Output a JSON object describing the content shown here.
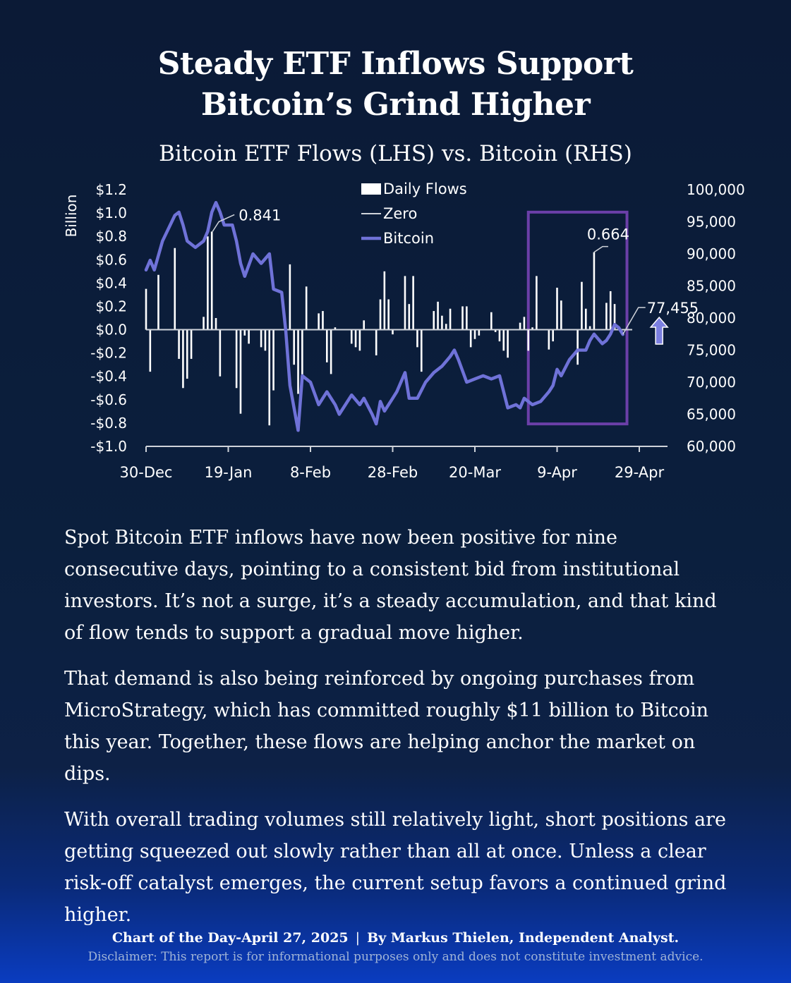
{
  "title_line1": "Steady ETF Inflows Support",
  "title_line2": "Bitcoin’s Grind Higher",
  "subtitle": "Bitcoin ETF Flows (LHS) vs. Bitcoin (RHS)",
  "paragraphs": [
    "Spot Bitcoin ETF inflows have now been positive for nine consecutive days, pointing to a consistent bid from institutional investors. It’s not a surge, it’s a steady accumulation, and that kind of flow tends to support a gradual move higher.",
    "That demand is also being reinforced by ongoing purchases from MicroStrategy, which has committed roughly $11 billion to Bitcoin this year. Together, these flows are helping anchor the market on dips.",
    "With overall trading volumes still relatively light, short positions are getting squeezed out slowly rather than all at once. Unless a clear risk-off catalyst emerges, the current setup favors a continued grind higher."
  ],
  "footer": {
    "left": "Chart of the Day-April 27, 2025",
    "separator": "|",
    "right": "By Markus Thielen, Independent Analyst.",
    "disclaimer": "Disclaimer: This report is for informational purposes only and does not constitute investment advice."
  },
  "colors": {
    "background": "#0b1f3d",
    "bitcoin_line": "#6f72d8",
    "bars": "#ffffff",
    "highlight_box": "#6b3fa8",
    "arrow": "#7b7fe0"
  },
  "chart_data": {
    "type": "bar+line",
    "left_axis": {
      "label": "Billion",
      "min": -1.0,
      "max": 1.2,
      "ticks": [
        -1.0,
        -0.8,
        -0.6,
        -0.4,
        -0.2,
        0.0,
        0.2,
        0.4,
        0.6,
        0.8,
        1.0,
        1.2
      ],
      "tick_labels": [
        "-$1.0",
        "-$0.8",
        "-$0.6",
        "-$0.4",
        "-$0.2",
        "$0.0",
        "$0.2",
        "$0.4",
        "$0.6",
        "$0.8",
        "$1.0",
        "$1.2"
      ]
    },
    "right_axis": {
      "min": 60000,
      "max": 100000,
      "ticks": [
        60000,
        65000,
        70000,
        75000,
        80000,
        85000,
        90000,
        95000,
        100000
      ],
      "tick_labels": [
        "60,000",
        "65,000",
        "70,000",
        "75,000",
        "80,000",
        "85,000",
        "90,000",
        "95,000",
        "100,000"
      ]
    },
    "x_axis": {
      "start": "2024-12-30",
      "end": "2025-04-30",
      "ticks": [
        "2024-12-30",
        "2025-01-19",
        "2025-02-08",
        "2025-02-28",
        "2025-03-20",
        "2025-04-09",
        "2025-04-29"
      ],
      "tick_labels": [
        "30-Dec",
        "19-Jan",
        "8-Feb",
        "28-Feb",
        "20-Mar",
        "9-Apr",
        "29-Apr"
      ]
    },
    "legend": {
      "position": "top-center",
      "entries": [
        "Daily Flows",
        "Zero",
        "Bitcoin"
      ]
    },
    "series": [
      {
        "name": "Daily Flows",
        "kind": "bar",
        "points": [
          [
            "2024-12-30",
            0.35
          ],
          [
            "2024-12-31",
            -0.36
          ],
          [
            "2025-01-02",
            0.47
          ],
          [
            "2025-01-06",
            0.7
          ],
          [
            "2025-01-07",
            -0.25
          ],
          [
            "2025-01-08",
            -0.5
          ],
          [
            "2025-01-09",
            -0.42
          ],
          [
            "2025-01-10",
            -0.25
          ],
          [
            "2025-01-13",
            0.11
          ],
          [
            "2025-01-14",
            0.8
          ],
          [
            "2025-01-15",
            0.841
          ],
          [
            "2025-01-16",
            0.1
          ],
          [
            "2025-01-17",
            -0.4
          ],
          [
            "2025-01-21",
            -0.5
          ],
          [
            "2025-01-22",
            -0.72
          ],
          [
            "2025-01-23",
            -0.05
          ],
          [
            "2025-01-24",
            -0.12
          ],
          [
            "2025-01-27",
            -0.15
          ],
          [
            "2025-01-28",
            -0.18
          ],
          [
            "2025-01-29",
            -0.82
          ],
          [
            "2025-01-30",
            -0.52
          ],
          [
            "2025-02-03",
            0.56
          ],
          [
            "2025-02-04",
            -0.3
          ],
          [
            "2025-02-05",
            -0.55
          ],
          [
            "2025-02-06",
            -0.42
          ],
          [
            "2025-02-07",
            0.37
          ],
          [
            "2025-02-10",
            0.14
          ],
          [
            "2025-02-11",
            0.16
          ],
          [
            "2025-02-12",
            -0.28
          ],
          [
            "2025-02-13",
            -0.38
          ],
          [
            "2025-02-14",
            0.02
          ],
          [
            "2025-02-18",
            -0.12
          ],
          [
            "2025-02-19",
            -0.15
          ],
          [
            "2025-02-20",
            -0.18
          ],
          [
            "2025-02-21",
            0.08
          ],
          [
            "2025-02-24",
            -0.22
          ],
          [
            "2025-02-25",
            0.26
          ],
          [
            "2025-02-26",
            0.5
          ],
          [
            "2025-02-27",
            0.26
          ],
          [
            "2025-02-28",
            -0.04
          ],
          [
            "2025-03-03",
            0.46
          ],
          [
            "2025-03-04",
            0.22
          ],
          [
            "2025-03-05",
            0.46
          ],
          [
            "2025-03-06",
            -0.15
          ],
          [
            "2025-03-07",
            -0.36
          ],
          [
            "2025-03-10",
            0.16
          ],
          [
            "2025-03-11",
            0.24
          ],
          [
            "2025-03-12",
            0.12
          ],
          [
            "2025-03-13",
            0.05
          ],
          [
            "2025-03-14",
            0.18
          ],
          [
            "2025-03-17",
            0.2
          ],
          [
            "2025-03-18",
            0.2
          ],
          [
            "2025-03-19",
            -0.15
          ],
          [
            "2025-03-20",
            -0.08
          ],
          [
            "2025-03-21",
            -0.05
          ],
          [
            "2025-03-24",
            0.15
          ],
          [
            "2025-03-25",
            -0.02
          ],
          [
            "2025-03-26",
            -0.1
          ],
          [
            "2025-03-27",
            -0.18
          ],
          [
            "2025-03-28",
            -0.24
          ],
          [
            "2025-03-31",
            0.06
          ],
          [
            "2025-04-01",
            0.11
          ],
          [
            "2025-04-02",
            -0.18
          ],
          [
            "2025-04-03",
            0.02
          ],
          [
            "2025-04-04",
            0.46
          ],
          [
            "2025-04-07",
            -0.17
          ],
          [
            "2025-04-08",
            -0.1
          ],
          [
            "2025-04-09",
            0.36
          ],
          [
            "2025-04-10",
            0.25
          ],
          [
            "2025-04-14",
            -0.3
          ],
          [
            "2025-04-15",
            0.41
          ],
          [
            "2025-04-16",
            0.18
          ],
          [
            "2025-04-17",
            0.03
          ],
          [
            "2025-04-18",
            0.664
          ],
          [
            "2025-04-21",
            0.23
          ],
          [
            "2025-04-22",
            0.33
          ],
          [
            "2025-04-23",
            0.22
          ]
        ]
      },
      {
        "name": "Bitcoin",
        "kind": "line",
        "points": [
          [
            "2024-12-30",
            87500
          ],
          [
            "2024-12-31",
            89000
          ],
          [
            "2025-01-01",
            87500
          ],
          [
            "2025-01-03",
            92000
          ],
          [
            "2025-01-06",
            96000
          ],
          [
            "2025-01-07",
            96500
          ],
          [
            "2025-01-08",
            94500
          ],
          [
            "2025-01-09",
            92000
          ],
          [
            "2025-01-11",
            91000
          ],
          [
            "2025-01-13",
            92000
          ],
          [
            "2025-01-14",
            93500
          ],
          [
            "2025-01-15",
            96500
          ],
          [
            "2025-01-16",
            98000
          ],
          [
            "2025-01-17",
            96500
          ],
          [
            "2025-01-18",
            94500
          ],
          [
            "2025-01-20",
            94500
          ],
          [
            "2025-01-21",
            92000
          ],
          [
            "2025-01-22",
            88500
          ],
          [
            "2025-01-23",
            86500
          ],
          [
            "2025-01-25",
            90000
          ],
          [
            "2025-01-27",
            88500
          ],
          [
            "2025-01-29",
            90000
          ],
          [
            "2025-01-30",
            84500
          ],
          [
            "2025-02-01",
            84000
          ],
          [
            "2025-02-02",
            78000
          ],
          [
            "2025-02-03",
            69500
          ],
          [
            "2025-02-05",
            62500
          ],
          [
            "2025-02-06",
            71000
          ],
          [
            "2025-02-08",
            70000
          ],
          [
            "2025-02-10",
            66500
          ],
          [
            "2025-02-12",
            68500
          ],
          [
            "2025-02-14",
            66500
          ],
          [
            "2025-02-15",
            65000
          ],
          [
            "2025-02-18",
            68000
          ],
          [
            "2025-02-20",
            66500
          ],
          [
            "2025-02-21",
            67500
          ],
          [
            "2025-02-23",
            65000
          ],
          [
            "2025-02-24",
            63500
          ],
          [
            "2025-02-25",
            67000
          ],
          [
            "2025-02-26",
            65500
          ],
          [
            "2025-02-28",
            67500
          ],
          [
            "2025-03-01",
            68500
          ],
          [
            "2025-03-03",
            71500
          ],
          [
            "2025-03-04",
            67500
          ],
          [
            "2025-03-06",
            67500
          ],
          [
            "2025-03-08",
            70000
          ],
          [
            "2025-03-10",
            71500
          ],
          [
            "2025-03-12",
            72500
          ],
          [
            "2025-03-14",
            74000
          ],
          [
            "2025-03-15",
            75000
          ],
          [
            "2025-03-16",
            73500
          ],
          [
            "2025-03-18",
            70000
          ],
          [
            "2025-03-20",
            70500
          ],
          [
            "2025-03-22",
            71000
          ],
          [
            "2025-03-24",
            70500
          ],
          [
            "2025-03-26",
            71000
          ],
          [
            "2025-03-28",
            66000
          ],
          [
            "2025-03-30",
            66500
          ],
          [
            "2025-03-31",
            66000
          ],
          [
            "2025-04-01",
            67500
          ],
          [
            "2025-04-03",
            66500
          ],
          [
            "2025-04-05",
            67000
          ],
          [
            "2025-04-07",
            68500
          ],
          [
            "2025-04-08",
            69500
          ],
          [
            "2025-04-09",
            72000
          ],
          [
            "2025-04-10",
            71000
          ],
          [
            "2025-04-12",
            73500
          ],
          [
            "2025-04-14",
            75000
          ],
          [
            "2025-04-16",
            75000
          ],
          [
            "2025-04-17",
            76500
          ],
          [
            "2025-04-18",
            77500
          ],
          [
            "2025-04-20",
            76000
          ],
          [
            "2025-04-21",
            76500
          ],
          [
            "2025-04-22",
            77500
          ],
          [
            "2025-04-23",
            79000
          ],
          [
            "2025-04-24",
            78500
          ],
          [
            "2025-04-25",
            77455
          ]
        ]
      }
    ],
    "annotations": [
      {
        "text": "0.841",
        "series": "Daily Flows",
        "date": "2025-01-15",
        "value": 0.841
      },
      {
        "text": "0.664",
        "series": "Daily Flows",
        "date": "2025-04-18",
        "value": 0.664
      },
      {
        "text": "77,455",
        "series": "Bitcoin",
        "date": "2025-04-25",
        "value": 77455
      }
    ],
    "highlight_box": {
      "x_start": "2025-04-02",
      "x_end": "2025-04-26",
      "y_top_rhs": 96500,
      "y_bottom_rhs": 63500
    },
    "arrow": {
      "direction": "up",
      "near": "2025-04-28"
    },
    "grid": false
  }
}
